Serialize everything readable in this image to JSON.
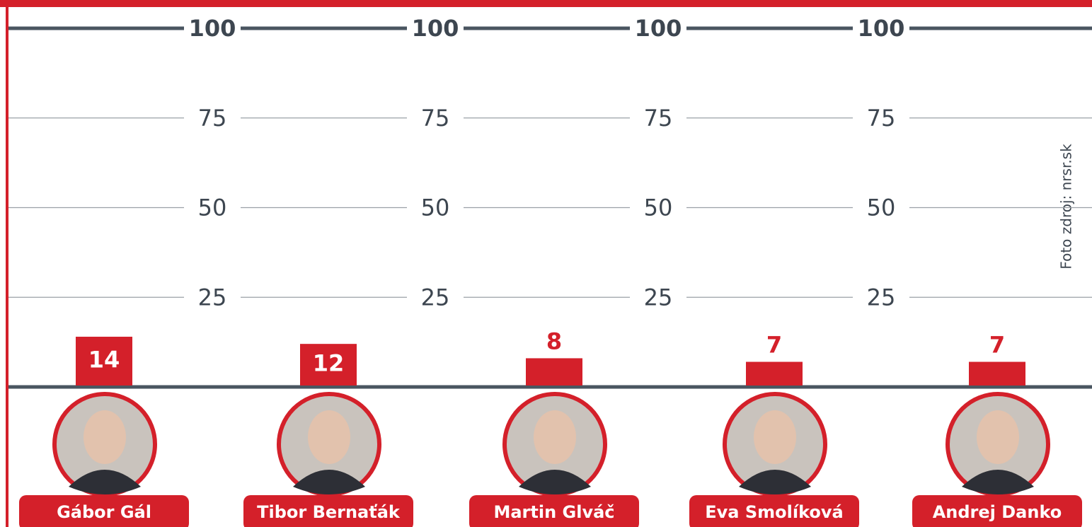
{
  "chart_data": {
    "type": "bar",
    "categories": [
      "Gábor Gál",
      "Tibor Bernaťák",
      "Martin Glváč",
      "Eva Smolíková",
      "Andrej Danko"
    ],
    "values": [
      14,
      12,
      8,
      7,
      7
    ],
    "color": "#d4202a",
    "ylim": [
      0,
      100
    ],
    "yticks": [
      25,
      50,
      75,
      100
    ],
    "grid": true,
    "annotation": "Foto zdroj: nrsr.sk"
  }
}
